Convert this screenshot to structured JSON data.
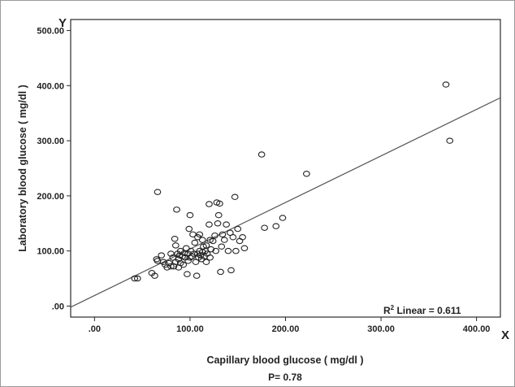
{
  "chart_data": {
    "type": "scatter",
    "xlabel": "Capillary blood glucose ( mg/dl )",
    "ylabel": "Laboratory blood glucose ( mg/dl )",
    "x_axis_letter": "X",
    "y_axis_letter": "Y",
    "xlim": [
      -25,
      425
    ],
    "ylim": [
      -20,
      520
    ],
    "x_ticks": [
      0,
      100,
      200,
      300,
      400
    ],
    "x_tick_labels": [
      ".00",
      "100.00",
      "200.00",
      "300.00",
      "400.00"
    ],
    "y_ticks": [
      0,
      100,
      200,
      300,
      400,
      500
    ],
    "y_tick_labels": [
      ".00",
      "100.00",
      "200.00",
      "300.00",
      "400.00",
      "500.00"
    ],
    "grid": false,
    "annotation": {
      "prefix": "R",
      "superscript": "2",
      "text": " Linear = 0.611"
    },
    "footer": "P= 0.78",
    "fit_line": {
      "x": [
        -25,
        425
      ],
      "y": [
        -2,
        378
      ]
    },
    "points": [
      [
        42,
        50
      ],
      [
        45,
        50
      ],
      [
        60,
        60
      ],
      [
        63,
        55
      ],
      [
        65,
        85
      ],
      [
        66,
        82
      ],
      [
        66,
        207
      ],
      [
        70,
        92
      ],
      [
        72,
        80
      ],
      [
        74,
        75
      ],
      [
        76,
        70
      ],
      [
        78,
        78
      ],
      [
        80,
        72
      ],
      [
        80,
        95
      ],
      [
        82,
        88
      ],
      [
        83,
        72
      ],
      [
        84,
        122
      ],
      [
        85,
        110
      ],
      [
        85,
        80
      ],
      [
        86,
        175
      ],
      [
        87,
        95
      ],
      [
        88,
        70
      ],
      [
        88,
        85
      ],
      [
        89,
        92
      ],
      [
        90,
        78
      ],
      [
        90,
        100
      ],
      [
        92,
        90
      ],
      [
        93,
        75
      ],
      [
        94,
        96
      ],
      [
        95,
        88
      ],
      [
        96,
        105
      ],
      [
        97,
        58
      ],
      [
        98,
        82
      ],
      [
        98,
        95
      ],
      [
        99,
        140
      ],
      [
        100,
        165
      ],
      [
        100,
        88
      ],
      [
        101,
        100
      ],
      [
        102,
        90
      ],
      [
        103,
        130
      ],
      [
        104,
        95
      ],
      [
        105,
        115
      ],
      [
        106,
        80
      ],
      [
        107,
        55
      ],
      [
        108,
        125
      ],
      [
        108,
        95
      ],
      [
        109,
        88
      ],
      [
        110,
        130
      ],
      [
        110,
        100
      ],
      [
        111,
        92
      ],
      [
        112,
        85
      ],
      [
        113,
        120
      ],
      [
        113,
        98
      ],
      [
        114,
        108
      ],
      [
        115,
        90
      ],
      [
        116,
        100
      ],
      [
        117,
        110
      ],
      [
        117,
        80
      ],
      [
        118,
        95
      ],
      [
        120,
        185
      ],
      [
        120,
        148
      ],
      [
        121,
        120
      ],
      [
        121,
        88
      ],
      [
        122,
        103
      ],
      [
        124,
        118
      ],
      [
        126,
        128
      ],
      [
        127,
        100
      ],
      [
        128,
        188
      ],
      [
        129,
        150
      ],
      [
        130,
        165
      ],
      [
        131,
        186
      ],
      [
        132,
        62
      ],
      [
        133,
        108
      ],
      [
        134,
        130
      ],
      [
        136,
        120
      ],
      [
        138,
        148
      ],
      [
        140,
        100
      ],
      [
        142,
        133
      ],
      [
        143,
        65
      ],
      [
        145,
        125
      ],
      [
        147,
        198
      ],
      [
        148,
        100
      ],
      [
        150,
        140
      ],
      [
        152,
        118
      ],
      [
        155,
        125
      ],
      [
        157,
        105
      ],
      [
        175,
        275
      ],
      [
        178,
        142
      ],
      [
        190,
        145
      ],
      [
        197,
        160
      ],
      [
        222,
        240
      ],
      [
        368,
        402
      ],
      [
        372,
        300
      ]
    ]
  }
}
